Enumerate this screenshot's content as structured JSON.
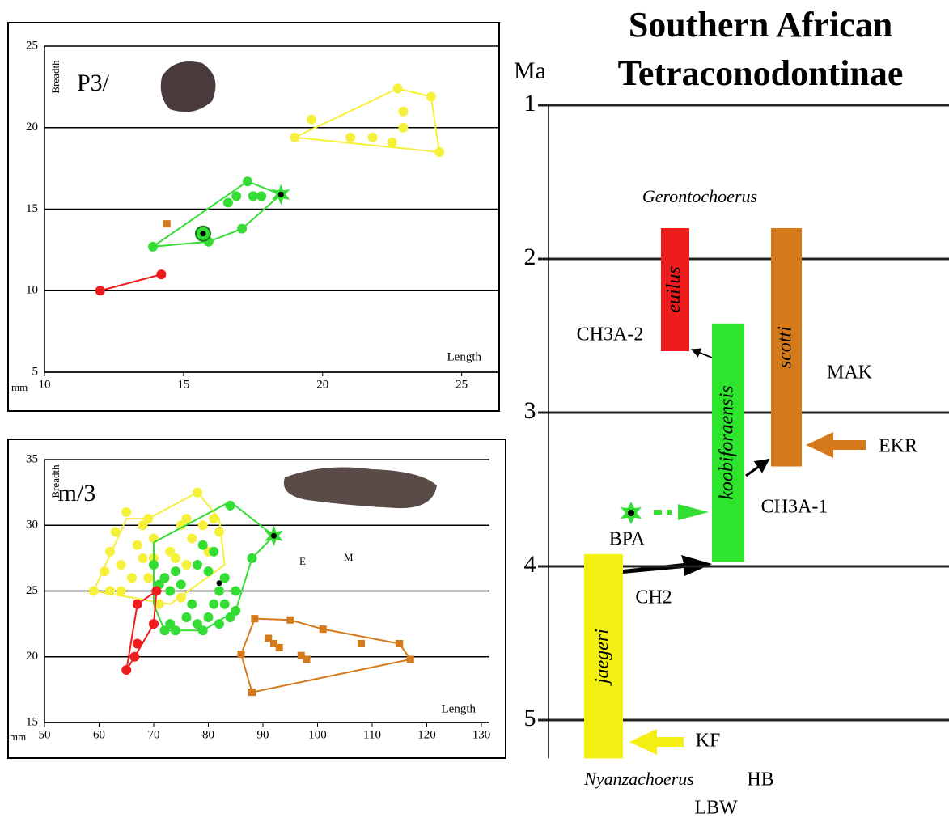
{
  "chart_data": [
    {
      "type": "scatter",
      "title": "P3/",
      "ylabel": "Breadth",
      "xlabel": "Length",
      "unit": "mm",
      "xlim": [
        10,
        26
      ],
      "xticks": [
        10,
        15,
        20,
        25
      ],
      "ylim": [
        5,
        25
      ],
      "yticks": [
        5,
        10,
        15,
        20,
        25
      ],
      "grid": true,
      "series": [
        {
          "color": "#f5f03a",
          "style": "outline",
          "x": [
            19,
            22.7,
            23.9,
            24.2,
            19
          ],
          "y": [
            19.4,
            22.4,
            21.9,
            18.5,
            19.4
          ]
        },
        {
          "color": "#f5f03a",
          "marker": "circle",
          "x": [
            19,
            19.6,
            21,
            21.8,
            22.5,
            22.7,
            22.9,
            22.9,
            23.9,
            24.2
          ],
          "y": [
            19.4,
            20.5,
            19.4,
            19.4,
            19.1,
            22.4,
            21,
            20,
            21.9,
            18.5
          ]
        },
        {
          "color": "#33dd33",
          "style": "outline",
          "x": [
            13.9,
            17.3,
            18.5,
            17.1,
            15.9,
            13.9
          ],
          "y": [
            12.7,
            16.7,
            15.9,
            13.8,
            13,
            12.7
          ]
        },
        {
          "color": "#33dd33",
          "marker": "circle",
          "x": [
            13.9,
            15.9,
            16.6,
            16.9,
            17.3,
            17.5,
            17.8,
            17.1
          ],
          "y": [
            12.7,
            13,
            15.4,
            15.8,
            16.7,
            15.8,
            15.8,
            13.8
          ]
        },
        {
          "color": "#33dd33",
          "marker": "ring",
          "x": [
            15.7
          ],
          "y": [
            13.5
          ]
        },
        {
          "color": "#33dd33",
          "marker": "star",
          "x": [
            18.5
          ],
          "y": [
            15.9
          ]
        },
        {
          "color": "#000000",
          "marker": "dot",
          "x": [
            15.7,
            18.5
          ],
          "y": [
            13.5,
            15.9
          ]
        },
        {
          "color": "#ee1c1c",
          "style": "outline",
          "x": [
            12,
            14.2
          ],
          "y": [
            10,
            11
          ]
        },
        {
          "color": "#ee1c1c",
          "marker": "circle",
          "x": [
            12,
            14.2
          ],
          "y": [
            10,
            11
          ]
        },
        {
          "color": "#d47a1a",
          "marker": "square",
          "x": [
            14.4
          ],
          "y": [
            14.1
          ]
        }
      ]
    },
    {
      "type": "scatter",
      "title": "m/3",
      "ylabel": "Breadth",
      "xlabel": "Length",
      "unit": "mm",
      "annotations": [
        "E",
        "M"
      ],
      "xlim": [
        50,
        130
      ],
      "xticks": [
        50,
        60,
        70,
        80,
        90,
        100,
        110,
        120,
        130
      ],
      "ylim": [
        15,
        35
      ],
      "yticks": [
        15,
        20,
        25,
        30,
        35
      ],
      "grid": true,
      "series": [
        {
          "color": "#f5f03a",
          "style": "outline",
          "x": [
            59,
            65,
            69,
            78,
            82,
            83,
            73,
            59
          ],
          "y": [
            25,
            30.5,
            30.5,
            32.5,
            30.5,
            27,
            24,
            25
          ]
        },
        {
          "color": "#f5f03a",
          "marker": "circle",
          "x": [
            59,
            61,
            62,
            62,
            63,
            64,
            64,
            65,
            66,
            67,
            68,
            68,
            69,
            69,
            70,
            70,
            71,
            72,
            73,
            74,
            75,
            76,
            77,
            78,
            79,
            80,
            81,
            82,
            76,
            75,
            73
          ],
          "y": [
            25,
            26.5,
            28,
            25,
            29.5,
            27,
            25,
            31,
            26,
            28.5,
            27.5,
            30,
            26,
            30.5,
            29,
            27.5,
            24,
            26,
            28,
            27.5,
            30,
            30.5,
            29,
            32.5,
            30,
            28,
            30.5,
            29.5,
            27,
            24.5,
            25
          ]
        },
        {
          "color": "#33dd33",
          "style": "outline",
          "x": [
            70,
            84,
            92,
            88,
            85,
            79,
            72,
            70,
            70
          ],
          "y": [
            28.7,
            31.8,
            29.2,
            27.5,
            23.5,
            22,
            22,
            24,
            28.7
          ]
        },
        {
          "color": "#33dd33",
          "marker": "circle",
          "x": [
            70,
            71,
            72,
            73,
            72,
            73,
            74,
            76,
            77,
            78,
            78,
            79,
            80,
            81,
            82,
            82,
            83,
            83,
            84,
            85,
            85,
            80,
            79,
            81,
            84,
            88,
            75,
            74
          ],
          "y": [
            27,
            25.5,
            26,
            25,
            22,
            22.5,
            22,
            23,
            24,
            22.5,
            27,
            22,
            23,
            24,
            25,
            22.5,
            26,
            24,
            23,
            25,
            23.5,
            26.5,
            28.5,
            28,
            31.5,
            27.5,
            25.5,
            26.5
          ]
        },
        {
          "color": "#33dd33",
          "marker": "star",
          "x": [
            92
          ],
          "y": [
            29.2
          ]
        },
        {
          "color": "#000000",
          "marker": "dot",
          "x": [
            92,
            82
          ],
          "y": [
            29.2,
            25.6
          ]
        },
        {
          "color": "#ee1c1c",
          "style": "outline",
          "x": [
            65,
            67,
            70.5,
            70,
            66.5,
            65
          ],
          "y": [
            19,
            24,
            25,
            22.5,
            20,
            19
          ]
        },
        {
          "color": "#ee1c1c",
          "marker": "circle",
          "x": [
            65,
            66.5,
            67,
            67,
            70,
            70.5
          ],
          "y": [
            19,
            20,
            21,
            24,
            22.5,
            25
          ]
        },
        {
          "color": "#d47a1a",
          "style": "outline",
          "x": [
            88.5,
            95,
            101,
            115,
            117,
            88,
            86,
            88.5
          ],
          "y": [
            22.9,
            22.8,
            22.1,
            21,
            19.8,
            17.3,
            20.2,
            22.9
          ]
        },
        {
          "color": "#d47a1a",
          "marker": "square",
          "x": [
            86,
            88,
            88.5,
            91,
            92,
            93,
            95,
            97,
            98,
            101,
            108,
            115,
            117
          ],
          "y": [
            20.2,
            17.3,
            22.9,
            21.4,
            21,
            20.7,
            22.8,
            20.1,
            19.8,
            22.1,
            21,
            21,
            19.8
          ]
        }
      ]
    },
    {
      "type": "range",
      "title": "Southern African Tetraconodontinae",
      "ylabel": "Ma",
      "ylim": [
        1,
        5.25
      ],
      "yticks": [
        1,
        2,
        3,
        4,
        5
      ],
      "grid": true,
      "series": [
        {
          "name": "euilus",
          "color": "#ee1c1c",
          "values": [
            1.8,
            2.6
          ]
        },
        {
          "name": "koobiforaensis",
          "color": "#2ee52e",
          "values": [
            2.42,
            3.97
          ]
        },
        {
          "name": "scotti",
          "color": "#d47a1a",
          "values": [
            1.8,
            3.35
          ]
        },
        {
          "name": "jaegeri",
          "color": "#f5f014",
          "values": [
            3.92,
            5.25
          ]
        }
      ],
      "annotations": [
        "Gerontochoerus",
        "Nyanzachoerus",
        "HB",
        "LBW",
        "MAK",
        "EKR",
        "CH3A-1",
        "CH3A-2",
        "CH2",
        "BPA",
        "KF"
      ]
    }
  ]
}
